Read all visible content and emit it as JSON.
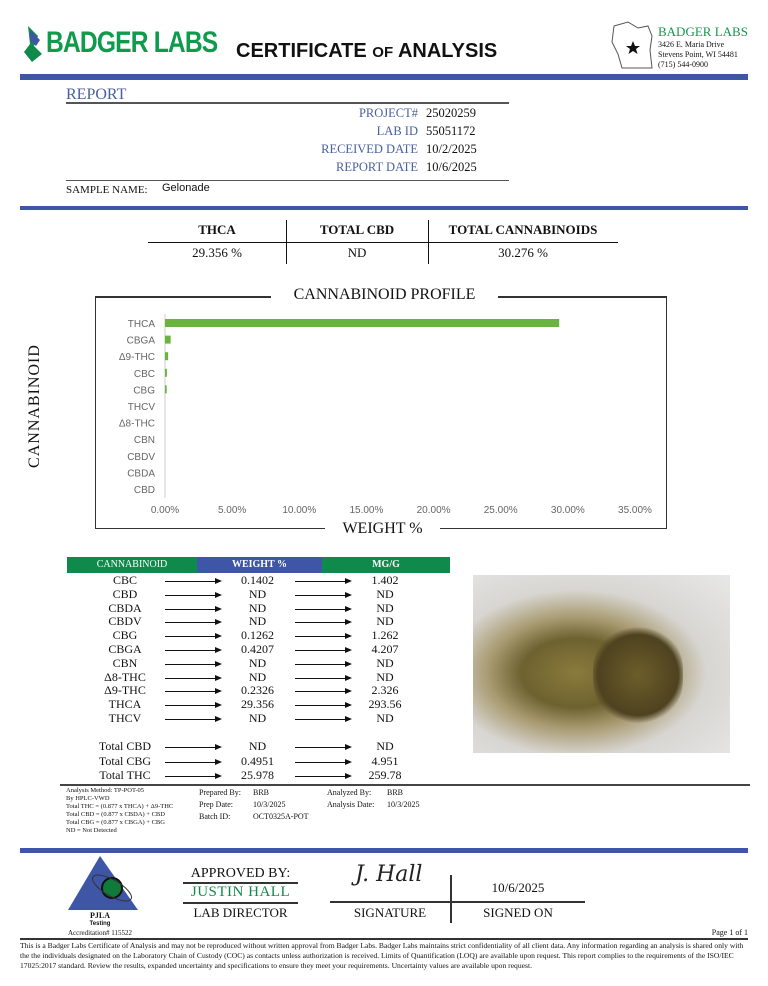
{
  "header": {
    "logo_text": "BADGER LABS",
    "title_a": "CERTIFICATE ",
    "title_of": "OF",
    "title_b": " ANALYSIS",
    "lab_name": "BADGER LABS",
    "address1": "3426 E. Maria Drive",
    "address2": "Stevens Point, WI 54481",
    "phone": "(715) 544-0900"
  },
  "report": {
    "heading": "REPORT",
    "fields": [
      {
        "label": "PROJECT#",
        "value": "25020259"
      },
      {
        "label": "LAB ID",
        "value": "55051172"
      },
      {
        "label": "RECEIVED DATE",
        "value": "10/2/2025"
      },
      {
        "label": "REPORT DATE",
        "value": "10/6/2025"
      }
    ],
    "sample_label": "SAMPLE NAME:",
    "sample_value": "Gelonade"
  },
  "summary": [
    {
      "label": "THCA",
      "value": "29.356 %"
    },
    {
      "label": "TOTAL CBD",
      "value": "ND"
    },
    {
      "label": "TOTAL CANNABINOIDS",
      "value": "30.276 %"
    }
  ],
  "chart_data": {
    "type": "bar",
    "orientation": "horizontal",
    "title": "CANNABINOID PROFILE",
    "xlabel": "WEIGHT %",
    "ylabel": "CANNABINOID",
    "categories": [
      "THCA",
      "CBGA",
      "Δ9-THC",
      "CBC",
      "CBG",
      "THCV",
      "Δ8-THC",
      "CBN",
      "CBDV",
      "CBDA",
      "CBD"
    ],
    "values": [
      29.356,
      0.4207,
      0.2326,
      0.1402,
      0.1262,
      0,
      0,
      0,
      0,
      0,
      0
    ],
    "xlim": [
      0,
      35
    ],
    "xticks": [
      "0.00%",
      "5.00%",
      "10.00%",
      "15.00%",
      "20.00%",
      "25.00%",
      "30.00%",
      "35.00%"
    ],
    "bar_color": "#6ab33e",
    "grid": false
  },
  "table": {
    "headers": [
      "CANNABINOID",
      "WEIGHT %",
      "MG/G"
    ],
    "header_colors": [
      "#0f8a4a",
      "#3f56a6",
      "#0f8a4a"
    ],
    "rows": [
      [
        "CBC",
        "0.1402",
        "1.402"
      ],
      [
        "CBD",
        "ND",
        "ND"
      ],
      [
        "CBDA",
        "ND",
        "ND"
      ],
      [
        "CBDV",
        "ND",
        "ND"
      ],
      [
        "CBG",
        "0.1262",
        "1.262"
      ],
      [
        "CBGA",
        "0.4207",
        "4.207"
      ],
      [
        "CBN",
        "ND",
        "ND"
      ],
      [
        "Δ8-THC",
        "ND",
        "ND"
      ],
      [
        "Δ9-THC",
        "0.2326",
        "2.326"
      ],
      [
        "THCA",
        "29.356",
        "293.56"
      ],
      [
        "THCV",
        "ND",
        "ND"
      ]
    ],
    "totals": [
      [
        "Total CBD",
        "ND",
        "ND"
      ],
      [
        "Total CBG",
        "0.4951",
        "4.951"
      ],
      [
        "Total THC",
        "25.978",
        "259.78"
      ]
    ]
  },
  "notes": [
    "Analysis Method: TP-POT-05",
    "By HPLC-VWD",
    "Total THC = (0.877 x THCA) + Δ9-THC",
    "Total CBD = (0.877 x CBDA) + CBD",
    "Total CBG = (0.877 x CBGA) + CBG",
    "ND = Not Detected"
  ],
  "prep": [
    {
      "label": "Prepared By:",
      "value": "BRB"
    },
    {
      "label": "Prep Date:",
      "value": "10/3/2025"
    },
    {
      "label": "Batch ID:",
      "value": "OCT0325A-POT"
    }
  ],
  "analysis": [
    {
      "label": "Analyzed By:",
      "value": "BRB"
    },
    {
      "label": "Analysis Date:",
      "value": "10/3/2025"
    }
  ],
  "approval": {
    "approved_by": "APPROVED BY:",
    "name": "JUSTIN HALL",
    "role": "LAB DIRECTOR",
    "signature_label": "SIGNATURE",
    "signature": "J. Hall",
    "date": "10/6/2025",
    "signed_on": "SIGNED ON"
  },
  "accreditation": {
    "org": "PJLA",
    "sub": "Testing",
    "number": "Accreditation# 115522"
  },
  "page": "Page 1 of 1",
  "disclaimer": "This is a Badger Labs Certificate of Analysis and may not be reproduced without written approval from Badger Labs. Badger Labs maintains strict confidentiality of all client data. Any information regarding an analysis is shared only with the the individuals designated on the Laboratory Chain of Custody (COC) as contacts unless authorization is received. Limits of Quantification (LOQ) are available upon request. This report complies to the requirements of the ISO/IEC 17025:2017 standard. Review the results, expanded uncertainty and specifications to ensure they meet your requirements. Uncertainty values are available upon request."
}
